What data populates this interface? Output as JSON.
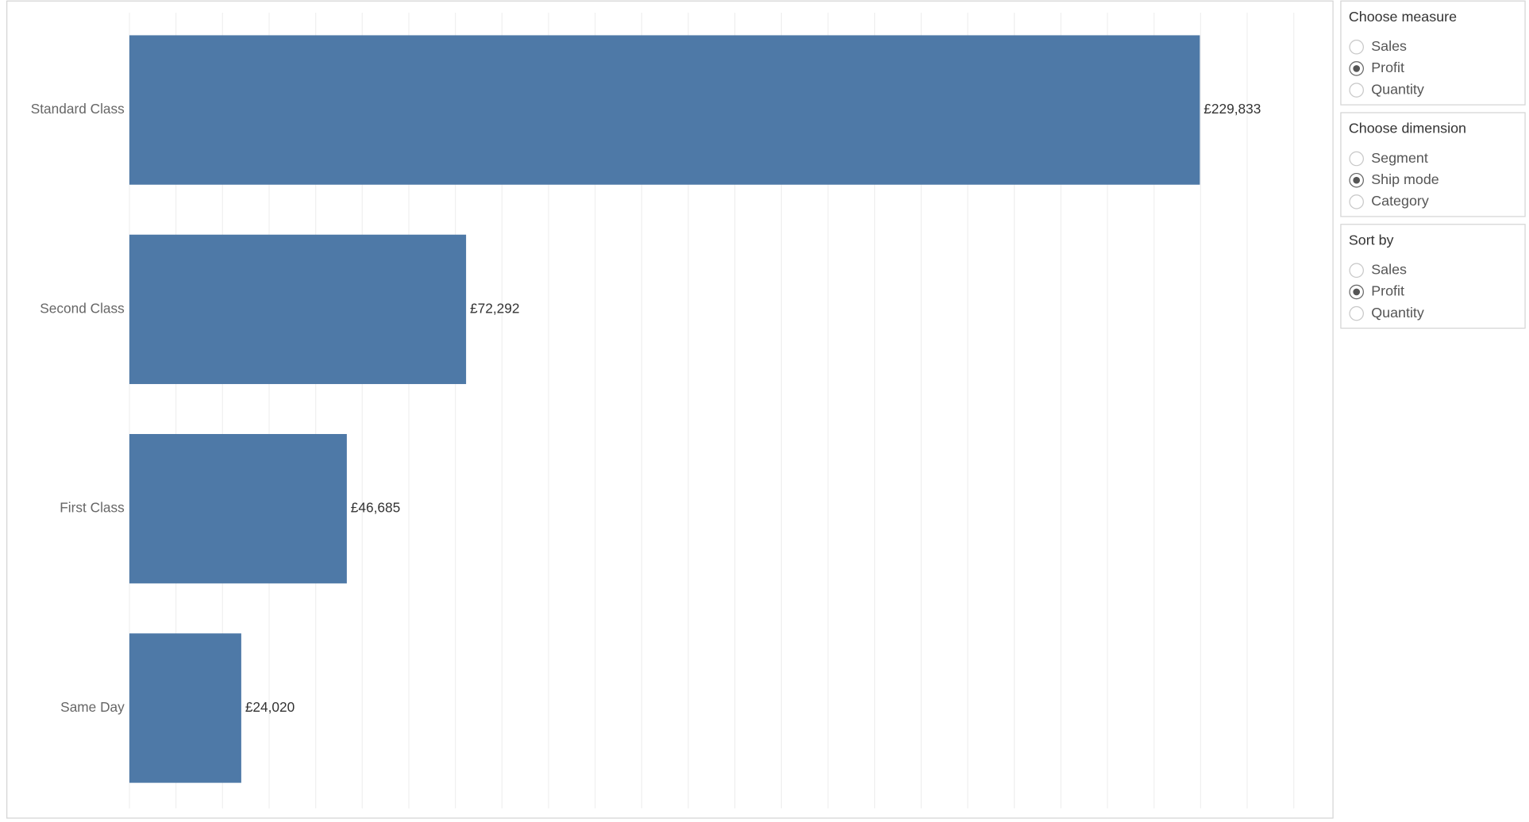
{
  "chart_data": {
    "type": "bar",
    "orientation": "horizontal",
    "categories": [
      "Standard Class",
      "Second Class",
      "First Class",
      "Same Day"
    ],
    "values": [
      229833,
      72292,
      46685,
      24020
    ],
    "value_labels": [
      "£229,833",
      "£72,292",
      "£46,685",
      "£24,020"
    ],
    "color": "#4e79a7",
    "xlim": [
      0,
      250000
    ],
    "xticks": [
      0,
      10000,
      20000,
      30000,
      40000,
      50000,
      60000,
      70000,
      80000,
      90000,
      100000,
      110000,
      120000,
      130000,
      140000,
      150000,
      160000,
      170000,
      180000,
      190000,
      200000,
      210000,
      220000,
      230000,
      240000,
      250000
    ],
    "grid": true
  },
  "controls": [
    {
      "title": "Choose measure",
      "options": [
        "Sales",
        "Profit",
        "Quantity"
      ],
      "selected": 1
    },
    {
      "title": "Choose dimension",
      "options": [
        "Segment",
        "Ship mode",
        "Category"
      ],
      "selected": 1
    },
    {
      "title": "Sort by",
      "options": [
        "Sales",
        "Profit",
        "Quantity"
      ],
      "selected": 1
    }
  ]
}
